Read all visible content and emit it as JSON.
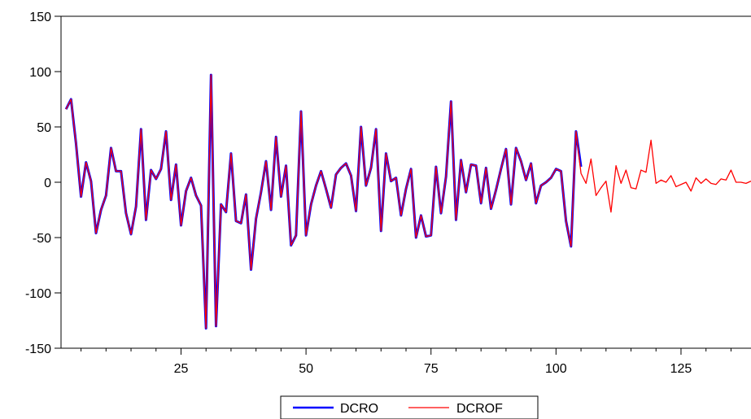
{
  "chart_data": {
    "type": "line",
    "title": "",
    "xlabel": "",
    "ylabel": "",
    "xlim": [
      1,
      139
    ],
    "ylim": [
      -150,
      150
    ],
    "yticks": [
      -150,
      -100,
      -50,
      0,
      50,
      100,
      150
    ],
    "xticks": [
      25,
      50,
      75,
      100,
      125
    ],
    "grid": false,
    "legend_position": "bottom-center",
    "series": [
      {
        "name": "DCRO",
        "color": "#0000ff",
        "x_start": 2,
        "values": [
          66,
          75,
          35,
          -13,
          18,
          1,
          -46,
          -25,
          -12,
          31,
          10,
          10,
          -28,
          -47,
          -22,
          48,
          -34,
          11,
          3,
          12,
          46,
          -16,
          16,
          -39,
          -8,
          4,
          -12,
          -21,
          -132,
          97,
          -130,
          -20,
          -27,
          26,
          -35,
          -37,
          -11,
          -79,
          -33,
          -9,
          19,
          -25,
          41,
          -13,
          15,
          -57,
          -48,
          64,
          -48,
          -20,
          -3,
          10,
          -6,
          -23,
          7,
          13,
          17,
          6,
          -26,
          50,
          -3,
          13,
          48,
          -44,
          26,
          1,
          4,
          -30,
          -6,
          12,
          -50,
          -30,
          -49,
          -48,
          14,
          -28,
          5,
          73,
          -34,
          20,
          -9,
          16,
          15,
          -19,
          13,
          -24,
          -7,
          12,
          30,
          -20,
          31,
          19,
          2,
          17,
          -19,
          -3,
          0,
          4,
          12,
          10,
          -35,
          -58,
          46,
          14
        ]
      },
      {
        "name": "DCROF",
        "color": "#ff0000",
        "x_start": 2,
        "values": [
          66,
          75,
          35,
          -13,
          18,
          1,
          -46,
          -25,
          -12,
          31,
          10,
          10,
          -28,
          -47,
          -22,
          48,
          -34,
          11,
          3,
          12,
          46,
          -16,
          16,
          -39,
          -8,
          4,
          -12,
          -21,
          -132,
          97,
          -130,
          -20,
          -27,
          26,
          -35,
          -37,
          -11,
          -79,
          -33,
          -9,
          19,
          -25,
          41,
          -13,
          15,
          -57,
          -48,
          64,
          -48,
          -20,
          -3,
          10,
          -6,
          -23,
          7,
          13,
          17,
          6,
          -26,
          50,
          -3,
          13,
          48,
          -44,
          26,
          1,
          4,
          -30,
          -6,
          12,
          -50,
          -30,
          -49,
          -48,
          14,
          -28,
          5,
          73,
          -34,
          20,
          -9,
          16,
          15,
          -19,
          13,
          -24,
          -7,
          12,
          30,
          -20,
          31,
          19,
          2,
          17,
          -19,
          -3,
          0,
          4,
          12,
          10,
          -35,
          -58,
          46,
          8,
          -1,
          21,
          -12,
          -5,
          1,
          -27,
          15,
          -1,
          11,
          -5,
          -6,
          11,
          9,
          38,
          -1,
          2,
          0,
          6,
          -4,
          -2,
          0,
          -8,
          4,
          -1,
          3,
          -1,
          -2,
          3,
          2,
          11,
          0,
          0,
          -1,
          1
        ]
      }
    ]
  }
}
